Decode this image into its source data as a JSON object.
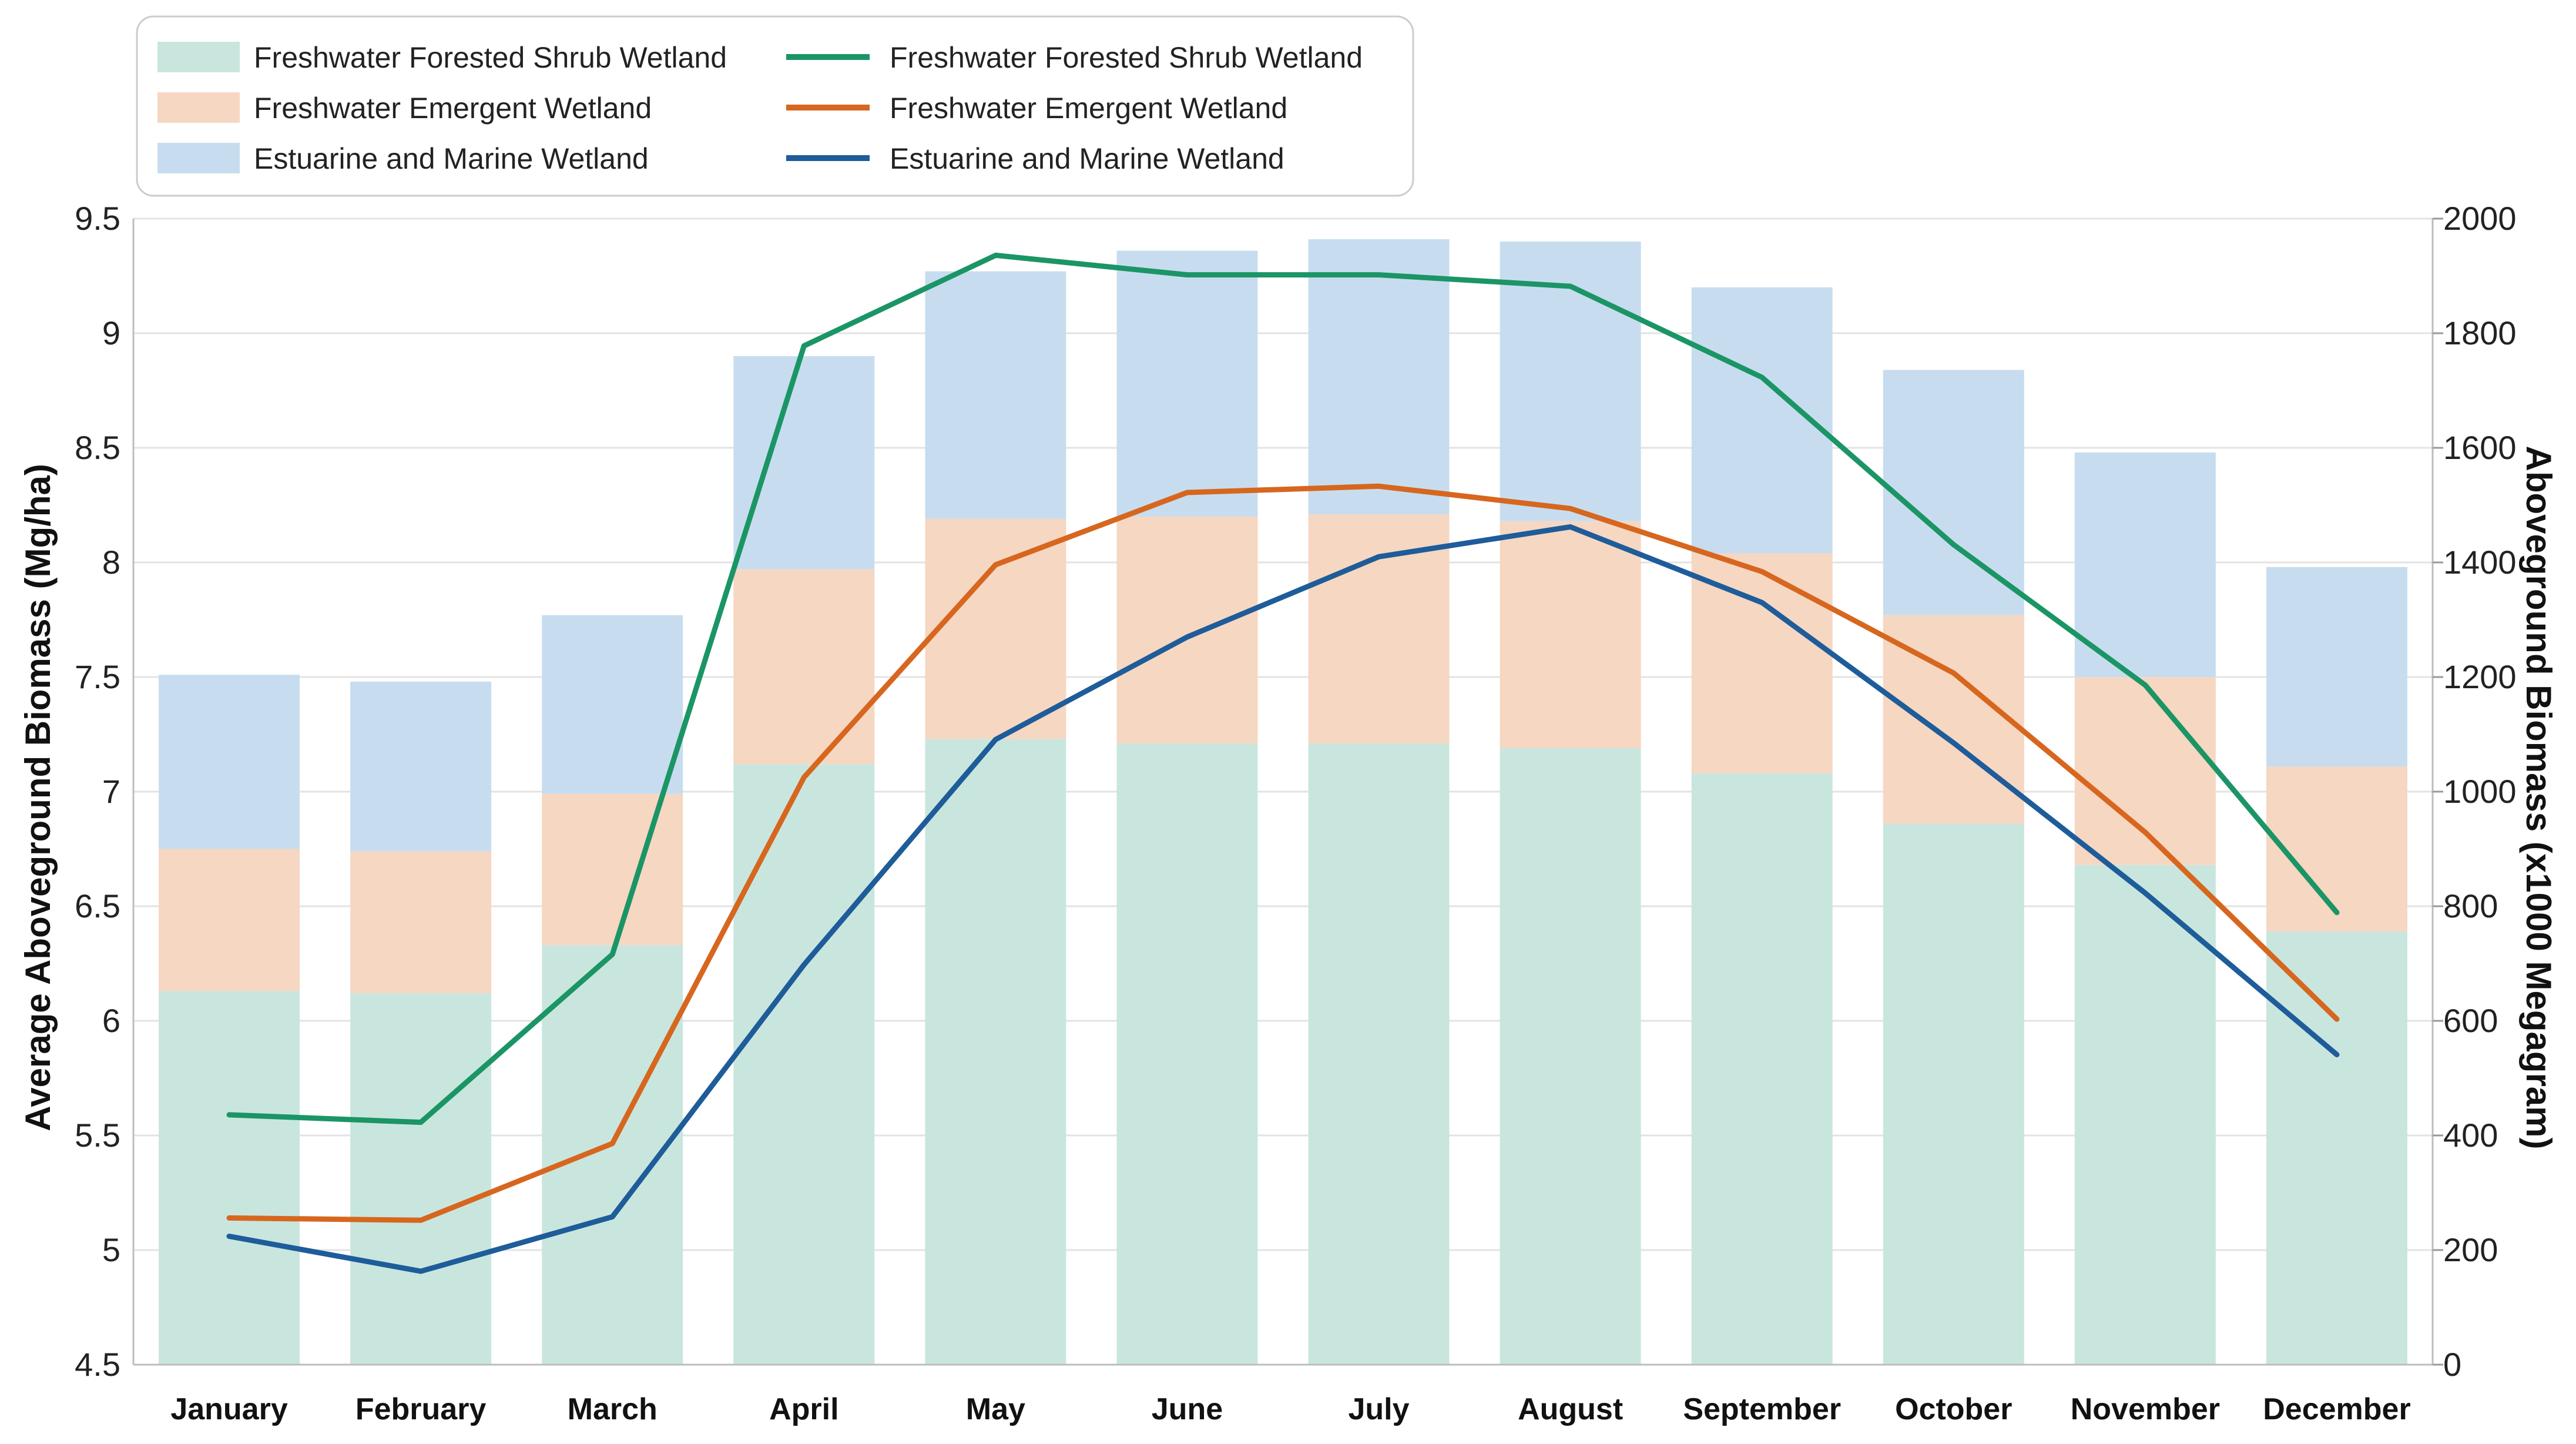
{
  "chart_data": {
    "type": "bar",
    "categories": [
      "January",
      "February",
      "March",
      "April",
      "May",
      "June",
      "July",
      "August",
      "September",
      "October",
      "November",
      "December"
    ],
    "stacked": true,
    "bar_series": [
      {
        "name": "Freshwater Forested Shrub Wetland",
        "color": "#c9e6de",
        "values": [
          6.13,
          6.12,
          6.33,
          7.12,
          7.23,
          7.21,
          7.21,
          7.19,
          7.08,
          6.86,
          6.68,
          6.39
        ]
      },
      {
        "name": "Freshwater Emergent Wetland",
        "color": "#f6d7c2",
        "values": [
          0.62,
          0.62,
          0.66,
          0.85,
          0.96,
          0.99,
          1.0,
          0.99,
          0.96,
          0.91,
          0.82,
          0.72
        ]
      },
      {
        "name": "Estuarine and Marine Wetland",
        "color": "#c7ddef",
        "values": [
          0.76,
          0.74,
          0.78,
          0.93,
          1.08,
          1.16,
          1.2,
          1.22,
          1.16,
          1.07,
          0.98,
          0.87
        ]
      }
    ],
    "line_series": [
      {
        "name": "Freshwater Forested Shrub Wetland",
        "color": "#1b9565",
        "values": [
          436,
          423,
          716,
          1778,
          1936,
          1902,
          1902,
          1882,
          1723,
          1431,
          1186,
          789
        ]
      },
      {
        "name": "Freshwater Emergent Wetland",
        "color": "#d7661e",
        "values": [
          256,
          252,
          386,
          1025,
          1396,
          1522,
          1533,
          1494,
          1384,
          1207,
          929,
          603
        ]
      },
      {
        "name": "Estuarine and Marine Wetland",
        "color": "#1e5c9a",
        "values": [
          224,
          163,
          258,
          698,
          1091,
          1270,
          1410,
          1462,
          1330,
          1085,
          823,
          541
        ]
      }
    ],
    "ylabel": "Average Aboveground Biomass (Mg/ha)",
    "y2label": "Aboveground Biomass (x1000 Megagram)",
    "ylim": [
      4.5,
      9.5
    ],
    "y2lim": [
      0,
      2000
    ],
    "yticks": [
      "4.5",
      "5",
      "5.5",
      "6",
      "6.5",
      "7",
      "7.5",
      "8",
      "8.5",
      "9",
      "9.5"
    ],
    "y2ticks": [
      "0",
      "200",
      "400",
      "600",
      "800",
      "1000",
      "1200",
      "1400",
      "1600",
      "1800",
      "2000"
    ],
    "grid": true,
    "legend_position": "top-left"
  }
}
